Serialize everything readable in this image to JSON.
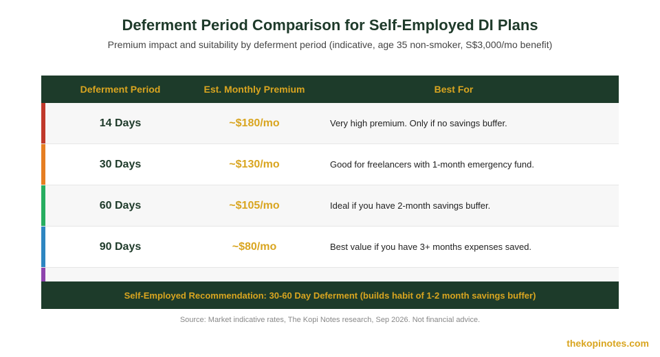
{
  "title": "Deferment Period Comparison for Self-Employed DI Plans",
  "subtitle": "Premium impact and suitability by deferment period (indicative, age 35 non-smoker, S$3,000/mo benefit)",
  "table": {
    "headers": [
      "Deferment Period",
      "Est. Monthly Premium",
      "Best For"
    ],
    "rows": [
      {
        "period": "14 Days",
        "premium": "~$180/mo",
        "best_for": "Very high premium. Only if no savings buffer.",
        "accent": "#c0392b"
      },
      {
        "period": "30 Days",
        "premium": "~$130/mo",
        "best_for": "Good for freelancers with 1-month emergency fund.",
        "accent": "#e67e22"
      },
      {
        "period": "60 Days",
        "premium": "~$105/mo",
        "best_for": "Ideal if you have 2-month savings buffer.",
        "accent": "#27ae60"
      },
      {
        "period": "90 Days",
        "premium": "~$80/mo",
        "best_for": "Best value if you have 3+ months expenses saved.",
        "accent": "#2e86c1"
      }
    ],
    "partial_row_accent": "#8e44ad"
  },
  "recommendation": "Self-Employed Recommendation: 30-60 Day Deferment (builds habit of 1-2 month savings buffer)",
  "source": "Source: Market indicative rates, The Kopi Notes research, Sep 2026. Not financial advice.",
  "brand": "thekopinotes.com",
  "colors": {
    "dark_green": "#1d3b2a",
    "gold": "#d9a520"
  }
}
